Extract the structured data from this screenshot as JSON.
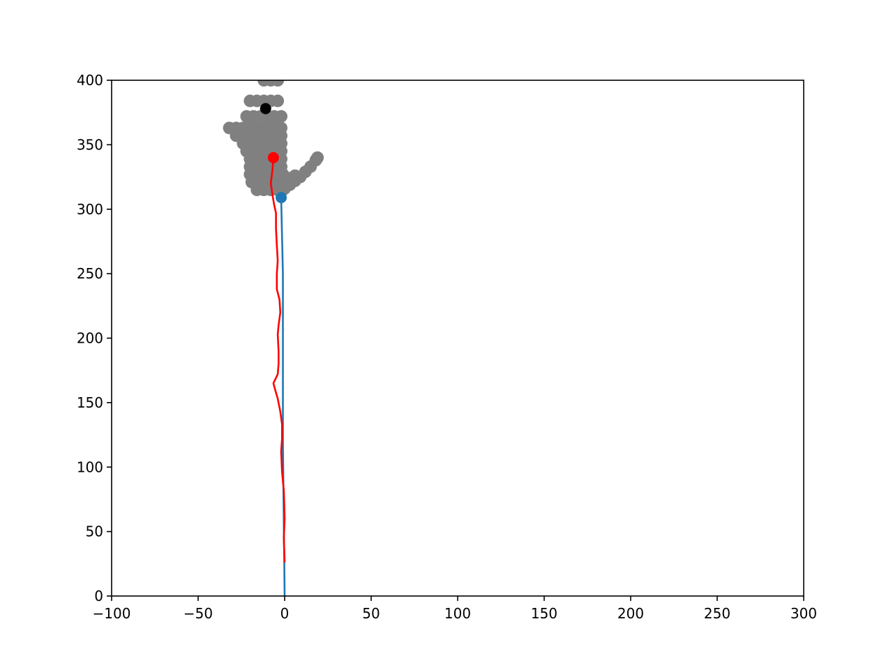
{
  "chart_data": {
    "type": "scatter",
    "title": "",
    "xlabel": "",
    "ylabel": "",
    "xlim": [
      -100,
      300
    ],
    "ylim": [
      0,
      400
    ],
    "grid": false,
    "x_ticks": [
      -100,
      -50,
      0,
      50,
      100,
      150,
      200,
      250,
      300
    ],
    "x_tick_labels": [
      "−100",
      "−50",
      "0",
      "50",
      "100",
      "150",
      "200",
      "250",
      "300"
    ],
    "y_ticks": [
      0,
      50,
      100,
      150,
      200,
      250,
      300,
      350,
      400
    ],
    "y_tick_labels": [
      "0",
      "50",
      "100",
      "150",
      "200",
      "250",
      "300",
      "350",
      "400"
    ],
    "colors": {
      "blue": "#1f77b4",
      "red": "#ff0000",
      "gray": "#808080",
      "black": "#000000"
    },
    "obstacle_points": {
      "color": "#808080",
      "points": [
        [
          -12,
          400
        ],
        [
          -8,
          400
        ],
        [
          -4,
          400
        ],
        [
          -20,
          384
        ],
        [
          -16,
          384
        ],
        [
          -12,
          384
        ],
        [
          -8,
          384
        ],
        [
          -4,
          384
        ],
        [
          -22,
          372
        ],
        [
          -18,
          372
        ],
        [
          -14,
          372
        ],
        [
          -10,
          372
        ],
        [
          -6,
          372
        ],
        [
          -2,
          372
        ],
        [
          -32,
          363
        ],
        [
          -28,
          363
        ],
        [
          -24,
          363
        ],
        [
          -20,
          363
        ],
        [
          -16,
          363
        ],
        [
          -12,
          363
        ],
        [
          -8,
          363
        ],
        [
          -4,
          363
        ],
        [
          -2,
          363
        ],
        [
          -28,
          357
        ],
        [
          -24,
          357
        ],
        [
          -20,
          357
        ],
        [
          -16,
          357
        ],
        [
          -12,
          357
        ],
        [
          -8,
          357
        ],
        [
          -4,
          357
        ],
        [
          -2,
          357
        ],
        [
          -24,
          351
        ],
        [
          -20,
          351
        ],
        [
          -16,
          351
        ],
        [
          -12,
          351
        ],
        [
          -8,
          351
        ],
        [
          -4,
          351
        ],
        [
          -2,
          351
        ],
        [
          -22,
          345
        ],
        [
          -18,
          345
        ],
        [
          -14,
          345
        ],
        [
          -10,
          345
        ],
        [
          -6,
          345
        ],
        [
          -2,
          345
        ],
        [
          -20,
          339
        ],
        [
          -16,
          339
        ],
        [
          -12,
          339
        ],
        [
          -8,
          339
        ],
        [
          -4,
          339
        ],
        [
          -2,
          339
        ],
        [
          -20,
          333
        ],
        [
          -16,
          333
        ],
        [
          -12,
          333
        ],
        [
          -8,
          333
        ],
        [
          -4,
          333
        ],
        [
          -2,
          333
        ],
        [
          -20,
          327
        ],
        [
          -16,
          327
        ],
        [
          -12,
          327
        ],
        [
          -8,
          327
        ],
        [
          -4,
          327
        ],
        [
          -1,
          327
        ],
        [
          -19,
          321
        ],
        [
          -15,
          321
        ],
        [
          -11,
          321
        ],
        [
          -7,
          321
        ],
        [
          -3,
          321
        ],
        [
          0,
          321
        ],
        [
          -16,
          315
        ],
        [
          -12,
          315
        ],
        [
          -8,
          315
        ],
        [
          -4,
          315
        ],
        [
          -1,
          315
        ],
        [
          0,
          316
        ],
        [
          3,
          319
        ],
        [
          6,
          322
        ],
        [
          9,
          325
        ],
        [
          12,
          329
        ],
        [
          15,
          333
        ],
        [
          18,
          338
        ],
        [
          19,
          340
        ],
        [
          3,
          324
        ],
        [
          6,
          326
        ]
      ]
    },
    "series": [
      {
        "color": "#1f77b4",
        "line": [
          [
            0,
            0
          ],
          [
            -1,
            120
          ],
          [
            -1,
            200
          ],
          [
            -1,
            250
          ],
          [
            -2,
            309
          ]
        ],
        "marker": [
          -2,
          309
        ]
      },
      {
        "color": "#ff0000",
        "line": [
          [
            0,
            26
          ],
          [
            -0.5,
            45
          ],
          [
            0,
            60
          ],
          [
            -0.5,
            82
          ],
          [
            -1.5,
            96
          ],
          [
            -2,
            112
          ],
          [
            -1.5,
            122
          ],
          [
            -1.5,
            133
          ],
          [
            -2.5,
            143
          ],
          [
            -4,
            153
          ],
          [
            -5.5,
            160
          ],
          [
            -6.5,
            165
          ],
          [
            -4,
            172
          ],
          [
            -3.5,
            180
          ],
          [
            -3.5,
            190
          ],
          [
            -4,
            203
          ],
          [
            -3.5,
            210
          ],
          [
            -2.5,
            220
          ],
          [
            -3,
            230
          ],
          [
            -4.5,
            238
          ],
          [
            -4.5,
            250
          ],
          [
            -4,
            260
          ],
          [
            -4.5,
            272
          ],
          [
            -5,
            285
          ],
          [
            -5,
            297
          ],
          [
            -6,
            303
          ],
          [
            -7,
            311
          ],
          [
            -8,
            320
          ],
          [
            -7,
            331
          ],
          [
            -6.5,
            340
          ]
        ],
        "marker": [
          -6.5,
          340
        ]
      }
    ],
    "goal_marker": {
      "color": "#000000",
      "point": [
        -11,
        378
      ]
    }
  }
}
